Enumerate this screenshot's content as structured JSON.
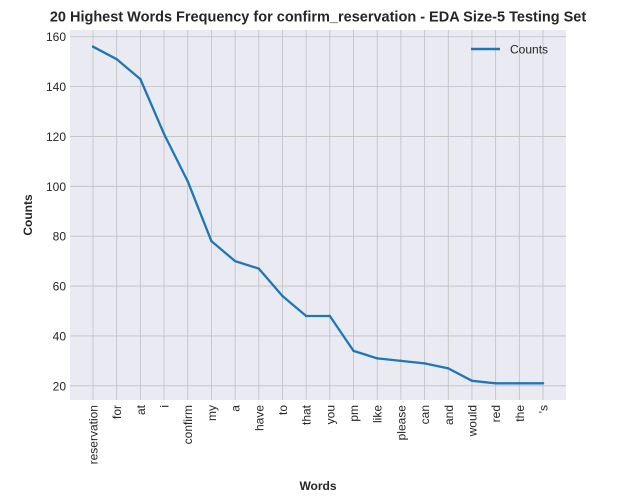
{
  "chart_data": {
    "type": "line",
    "title": "20 Highest Words Frequency for confirm_reservation - EDA Size-5 Testing Set",
    "xlabel": "Words",
    "ylabel": "Counts",
    "categories": [
      "reservation",
      "for",
      "at",
      "i",
      "confirm",
      "my",
      "a",
      "have",
      "to",
      "that",
      "you",
      "pm",
      "like",
      "please",
      "can",
      "and",
      "would",
      "red",
      "the",
      "'s"
    ],
    "series": [
      {
        "name": "Counts",
        "color": "#1f77b4",
        "values": [
          156,
          151,
          143,
          121,
          102,
          78,
          70,
          67,
          56,
          48,
          48,
          34,
          31,
          30,
          29,
          27,
          22,
          21,
          21,
          21
        ]
      }
    ],
    "ylim": [
      14.3,
      162.7
    ],
    "yticks": [
      20,
      40,
      60,
      80,
      100,
      120,
      140,
      160
    ],
    "grid": true,
    "legend_position": "top-right",
    "background_color": "#eaeaf2",
    "grid_color": "#c0c0c0"
  }
}
